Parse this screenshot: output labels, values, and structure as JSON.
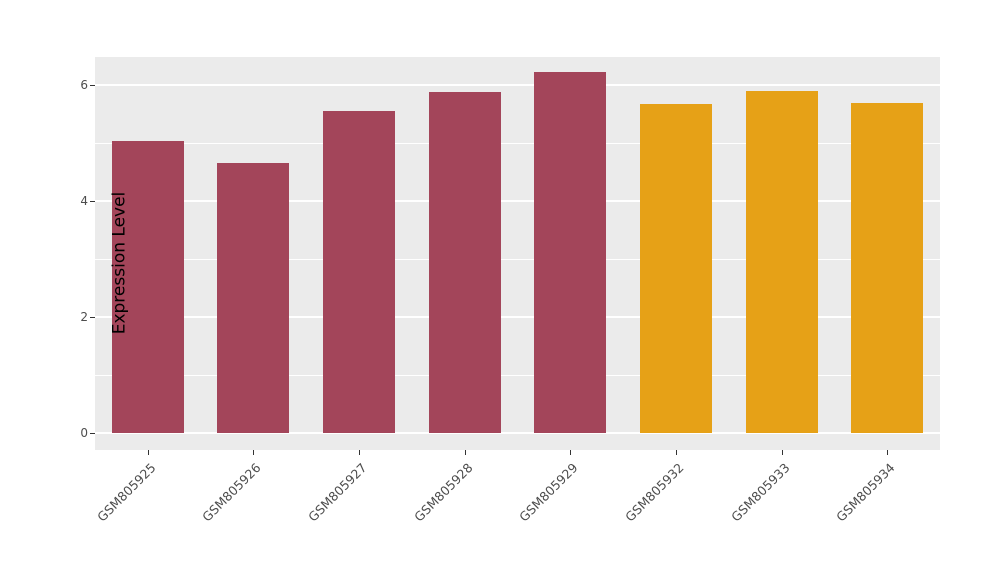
{
  "chart_data": {
    "type": "bar",
    "title": "",
    "xlabel": "",
    "ylabel": "Expression Level",
    "categories": [
      "GSM805925",
      "GSM805926",
      "GSM805927",
      "GSM805928",
      "GSM805929",
      "GSM805932",
      "GSM805933",
      "GSM805934"
    ],
    "values": [
      5.03,
      4.65,
      5.55,
      5.88,
      6.22,
      5.68,
      5.9,
      5.69
    ],
    "bar_colors": [
      "#A3455A",
      "#A3455A",
      "#A3455A",
      "#A3455A",
      "#A3455A",
      "#E6A117",
      "#E6A117",
      "#E6A117"
    ],
    "ylim": [
      0,
      6.5
    ],
    "yticks": [
      0,
      2,
      4,
      6
    ],
    "yticks_minor": [
      1,
      3,
      5
    ],
    "grid": "on",
    "legend": "none",
    "panel_background": "#EBEBEB",
    "grid_color": "#FFFFFF"
  }
}
